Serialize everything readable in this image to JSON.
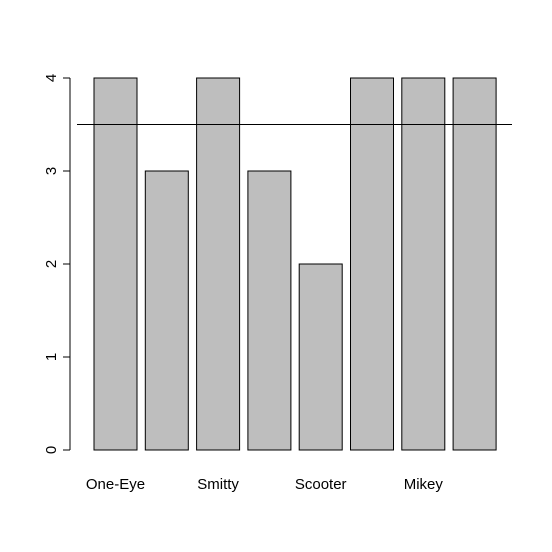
{
  "chart_data": {
    "type": "bar",
    "categories": [
      "One-Eye",
      "",
      "Smitty",
      "",
      "Scooter",
      "",
      "Mikey",
      ""
    ],
    "values": [
      4,
      3,
      4,
      3,
      2,
      4,
      4,
      4
    ],
    "ylim": [
      0,
      4
    ],
    "yticks": [
      0,
      1,
      2,
      3,
      4
    ],
    "reference_line": 3.5,
    "bar_color": "#bebebe",
    "border_color": "#000000",
    "title": "",
    "xlabel": "",
    "ylabel": ""
  }
}
